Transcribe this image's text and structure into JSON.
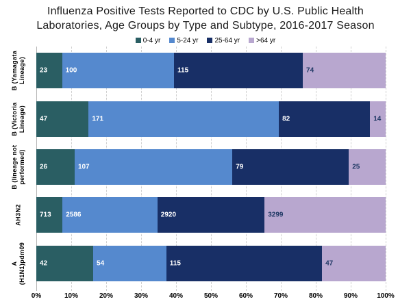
{
  "title": {
    "lines": [
      "Influenza Positive Tests Reported to CDC by U.S. Public Health",
      "Laboratories, Age Groups by Type and Subtype, 2016-2017 Season"
    ]
  },
  "chart_data": {
    "type": "bar",
    "orientation": "horizontal",
    "stacked": true,
    "stack_mode": "percent",
    "title": "Influenza Positive Tests Reported to CDC by U.S. Public Health Laboratories, Age Groups by Type and Subtype, 2016-2017 Season",
    "categories": [
      "B (Yamagata Lineage)",
      "B (Victoria Lineage)",
      "B (lineage not performed)",
      "AH3N2",
      "A (H1N1)pdm09"
    ],
    "category_label_lines": [
      [
        "B (Yamagata",
        "Lineage)"
      ],
      [
        "B (Victoria",
        "Lineage)"
      ],
      [
        "B (lineage not",
        "performed)"
      ],
      [
        "AH3N2"
      ],
      [
        "A",
        "(H1N1)pdm09"
      ]
    ],
    "series": [
      {
        "name": "0-4 yr",
        "color": "#2A5E63",
        "label_color": "#ffffff",
        "values": [
          23,
          47,
          26,
          713,
          42
        ]
      },
      {
        "name": "5-24 yr",
        "color": "#5589CE",
        "label_color": "#ffffff",
        "values": [
          100,
          171,
          107,
          2586,
          54
        ]
      },
      {
        "name": "25-64 yr",
        "color": "#182F66",
        "label_color": "#ffffff",
        "values": [
          115,
          82,
          79,
          2920,
          115
        ]
      },
      {
        "name": ">64 yr",
        "color": "#B8A7CF",
        "label_color": "#1F3864",
        "values": [
          74,
          14,
          25,
          3299,
          47
        ]
      }
    ],
    "x_ticks": [
      "0%",
      "10%",
      "20%",
      "30%",
      "40%",
      "50%",
      "60%",
      "70%",
      "80%",
      "90%",
      "100%"
    ],
    "xlim": [
      0,
      100
    ],
    "grid": true,
    "gridline_style": "dashed",
    "legend_position": "top"
  }
}
